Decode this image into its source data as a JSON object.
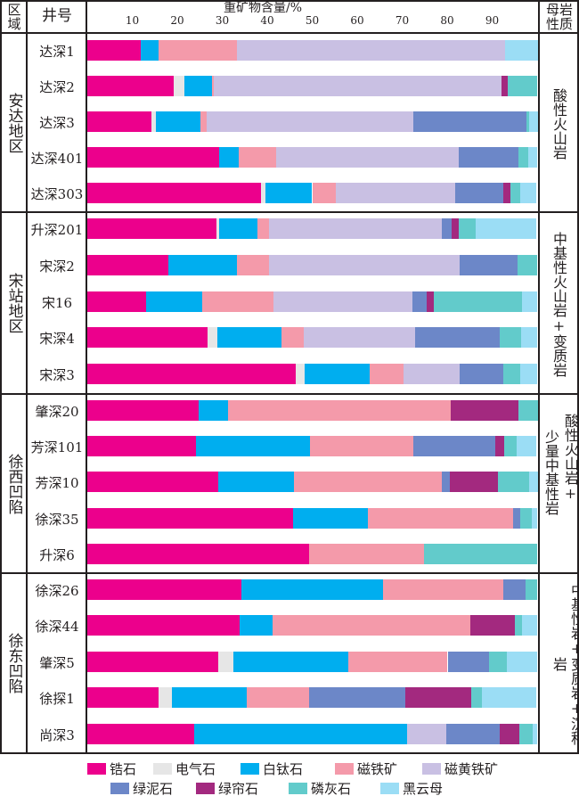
{
  "header": {
    "region": "区域",
    "well": "井号",
    "rock": "母岩性质"
  },
  "chart_data": {
    "type": "bar",
    "orientation": "horizontal",
    "stacked": true,
    "title": "重矿物含量/%",
    "xlim": [
      0,
      100
    ],
    "xticks": [
      10,
      20,
      30,
      40,
      50,
      60,
      70,
      80,
      90
    ],
    "series_names": [
      "锆石",
      "电气石",
      "白钛石",
      "磁铁矿",
      "磁黄铁矿",
      "绿泥石",
      "绿帘石",
      "磷灰石",
      "黑云母"
    ],
    "colors": [
      "#EC008C",
      "#E6E6E6",
      "#00AEEF",
      "#F49AAA",
      "#C9C0E3",
      "#6C87C8",
      "#A3297F",
      "#62CBCB",
      "#9BDDF5"
    ],
    "legend_placement": "bottom",
    "groups": [
      {
        "region": "安达地区",
        "rock": [
          "酸性火山岩"
        ],
        "wells": [
          {
            "name": "达深1",
            "values": [
              11.9,
              0,
              3.9,
              17.4,
              59.7,
              0,
              0,
              0,
              7.2
            ]
          },
          {
            "name": "达深2",
            "values": [
              19.2,
              2.3,
              6.2,
              0.5,
              63.8,
              0,
              1.4,
              6.6,
              0
            ]
          },
          {
            "name": "达深3",
            "values": [
              14.2,
              1.1,
              9.8,
              1.5,
              45.9,
              25.1,
              0,
              0.6,
              1.9
            ]
          },
          {
            "name": "达深401",
            "values": [
              29.4,
              0,
              4.2,
              8.4,
              40.5,
              13.3,
              0,
              2.3,
              2.0
            ]
          },
          {
            "name": "达深303",
            "values": [
              38.7,
              0.9,
              10.4,
              5.3,
              26.5,
              10.7,
              1.5,
              2.2,
              3.7
            ]
          }
        ]
      },
      {
        "region": "宋站地区",
        "rock": [
          "中基性火山岩+变质岩"
        ],
        "wells": [
          {
            "name": "升深201",
            "values": [
              28.7,
              0.7,
              8.5,
              2.5,
              38.5,
              2.1,
              1.6,
              3.7,
              13.6
            ]
          },
          {
            "name": "宋深2",
            "values": [
              18.1,
              0,
              15.1,
              7.1,
              42.4,
              13.0,
              0,
              4.3,
              0
            ]
          },
          {
            "name": "宋16",
            "values": [
              13.1,
              0,
              12.4,
              15.8,
              31.0,
              3.1,
              1.7,
              19.6,
              3.3
            ]
          },
          {
            "name": "宋深4",
            "values": [
              26.7,
              2.3,
              14.2,
              4.9,
              24.8,
              18.8,
              0,
              4.8,
              3.6
            ]
          },
          {
            "name": "宋深3",
            "values": [
              46.3,
              2.0,
              14.4,
              7.6,
              12.4,
              9.8,
              0,
              3.7,
              3.8
            ]
          }
        ]
      },
      {
        "region": "徐西凹陷",
        "rock": [
          "酸性火山岩+",
          "少量中基性岩"
        ],
        "wells": [
          {
            "name": "肇深20",
            "values": [
              24.7,
              0,
              6.6,
              49.5,
              0,
              0,
              15.1,
              4.3,
              0
            ]
          },
          {
            "name": "芳深101",
            "values": [
              24.2,
              0,
              25.3,
              22.9,
              0,
              18.3,
              2.0,
              2.8,
              4.3
            ]
          },
          {
            "name": "芳深10",
            "values": [
              29.1,
              0,
              16.9,
              32.8,
              0,
              1.7,
              10.7,
              7.0,
              1.9
            ]
          },
          {
            "name": "徐深35",
            "values": [
              45.8,
              0,
              16.5,
              32.4,
              0,
              1.5,
              0,
              2.7,
              1.2
            ]
          },
          {
            "name": "升深6",
            "values": [
              49.4,
              0,
              0,
              25.4,
              0,
              0,
              0,
              25.2,
              0
            ]
          }
        ]
      },
      {
        "region": "徐东凹陷",
        "rock": [
          "中基性岩+变质岩+沉积岩"
        ],
        "wells": [
          {
            "name": "徐深26",
            "values": [
              34.2,
              0,
              31.6,
              26.7,
              0,
              4.9,
              0,
              2.6,
              0
            ]
          },
          {
            "name": "徐深44",
            "values": [
              33.9,
              0,
              7.3,
              43.9,
              0,
              0,
              9.9,
              1.7,
              3.3
            ]
          },
          {
            "name": "肇深5",
            "values": [
              29.2,
              3.3,
              25.6,
              22.0,
              0,
              9.2,
              0,
              4.0,
              6.7
            ]
          },
          {
            "name": "徐探1",
            "values": [
              15.9,
              2.9,
              16.6,
              13.9,
              0,
              21.3,
              14.7,
              2.5,
              12.1
            ]
          },
          {
            "name": "尚深3",
            "values": [
              23.7,
              0,
              47.4,
              0,
              8.8,
              11.8,
              4.3,
              3.0,
              1.0
            ]
          }
        ]
      }
    ]
  }
}
